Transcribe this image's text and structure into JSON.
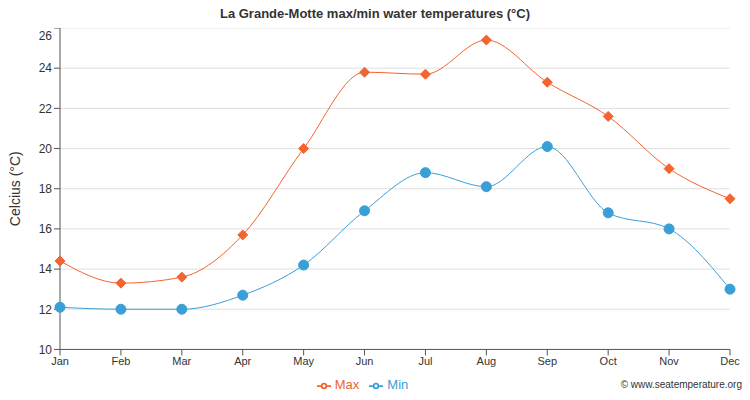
{
  "chart_data": {
    "type": "line",
    "title": "La Grande-Motte max/min water temperatures (°C)",
    "y_label": "Celcius (°C)",
    "annotations": [
      "© www.seatemperature.org"
    ],
    "categories": [
      "Jan",
      "Feb",
      "Mar",
      "Apr",
      "May",
      "Jun",
      "Jul",
      "Aug",
      "Sep",
      "Oct",
      "Nov",
      "Dec"
    ],
    "series": [
      {
        "name": "Max",
        "color": "#f26430",
        "marker": "diamond",
        "values": [
          14.4,
          13.3,
          13.6,
          15.7,
          20.0,
          23.8,
          23.7,
          25.4,
          23.3,
          21.6,
          19.0,
          17.5
        ]
      },
      {
        "name": "Min",
        "color": "#3a9fd6",
        "marker": "circle",
        "values": [
          12.1,
          12.0,
          12.0,
          12.7,
          14.2,
          16.9,
          18.8,
          18.1,
          20.1,
          16.8,
          16.0,
          13.0
        ]
      }
    ],
    "ylim": [
      10,
      26
    ],
    "yticks": [
      10,
      12,
      14,
      16,
      18,
      20,
      22,
      24,
      26
    ],
    "grid": true,
    "legend": "bottom"
  }
}
